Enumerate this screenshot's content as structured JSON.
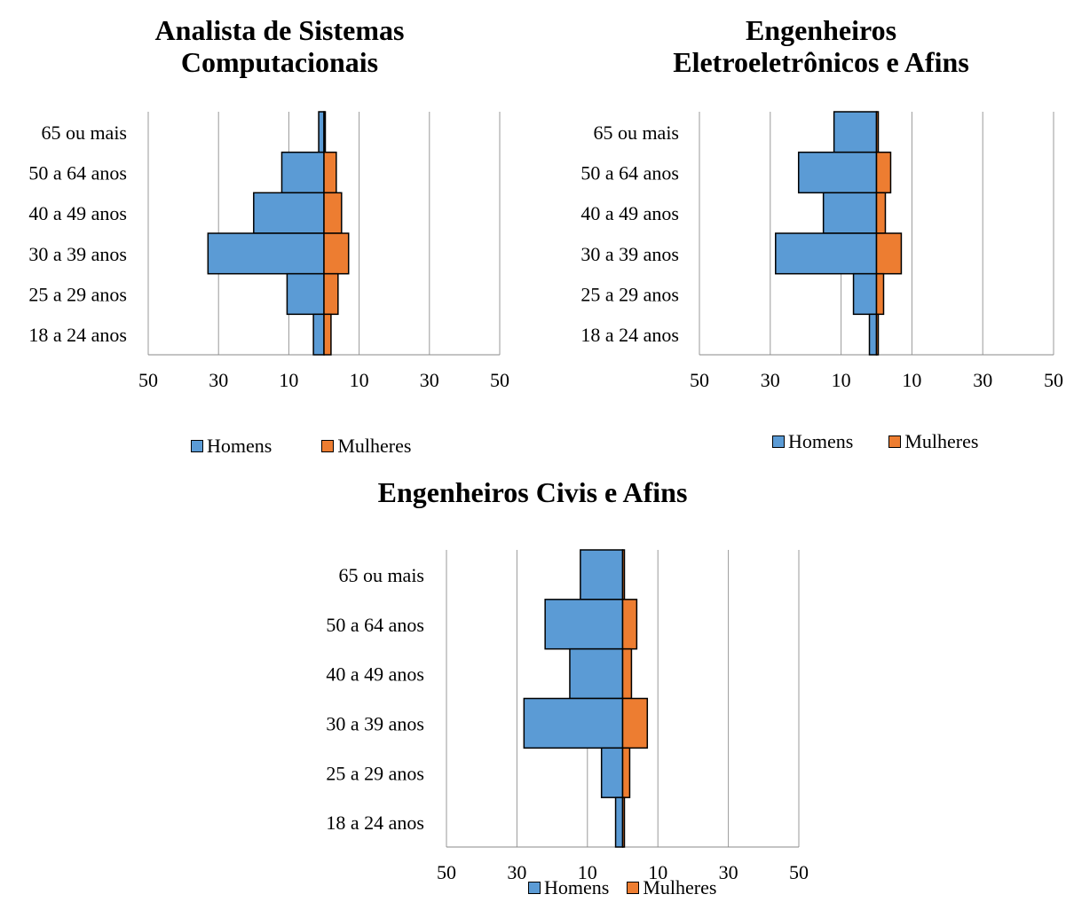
{
  "chart_data": [
    {
      "type": "bar",
      "orientation": "horizontal",
      "title": [
        "Analista de Sistemas",
        "Computacionais"
      ],
      "categories": [
        "65 ou mais",
        "50 a 64 anos",
        "40 a 49 anos",
        "30 a 39 anos",
        "25 a 29 anos",
        "18 a 24 anos"
      ],
      "x_tick_labels": [
        "50",
        "30",
        "10",
        "10",
        "30",
        "50"
      ],
      "xlim": [
        -50,
        50
      ],
      "grid": true,
      "legend_position": "bottom",
      "series": [
        {
          "name": "Homens",
          "color": "#5b9bd5",
          "values": [
            -1.5,
            -12,
            -20,
            -33,
            -10.5,
            -3
          ]
        },
        {
          "name": "Mulheres",
          "color": "#ed7d31",
          "values": [
            0,
            3.5,
            5,
            7,
            4,
            2
          ]
        }
      ]
    },
    {
      "type": "bar",
      "orientation": "horizontal",
      "title": [
        "Engenheiros",
        "Eletroeletrônicos e Afins"
      ],
      "categories": [
        "65 ou mais",
        "50 a 64 anos",
        "40 a 49 anos",
        "30 a 39 anos",
        "25 a 29 anos",
        "18 a 24 anos"
      ],
      "x_tick_labels": [
        "50",
        "30",
        "10",
        "10",
        "30",
        "50"
      ],
      "xlim": [
        -50,
        50
      ],
      "grid": true,
      "legend_position": "bottom",
      "series": [
        {
          "name": "Homens",
          "color": "#5b9bd5",
          "values": [
            -12,
            -22,
            -15,
            -28.5,
            -6.5,
            -2
          ]
        },
        {
          "name": "Mulheres",
          "color": "#ed7d31",
          "values": [
            0.5,
            4,
            2.5,
            7,
            2,
            0.5
          ]
        }
      ]
    },
    {
      "type": "bar",
      "orientation": "horizontal",
      "title": [
        "Engenheiros Civis e Afins"
      ],
      "categories": [
        "65 ou mais",
        "50 a 64 anos",
        "40 a 49 anos",
        "30 a 39 anos",
        "25 a 29 anos",
        "18 a 24 anos"
      ],
      "x_tick_labels": [
        "50",
        "30",
        "10",
        "10",
        "30",
        "50"
      ],
      "xlim": [
        -50,
        50
      ],
      "grid": true,
      "legend_position": "bottom",
      "series": [
        {
          "name": "Homens",
          "color": "#5b9bd5",
          "values": [
            -12,
            -22,
            -15,
            -28,
            -6,
            -2
          ]
        },
        {
          "name": "Mulheres",
          "color": "#ed7d31",
          "values": [
            0.5,
            4,
            2.5,
            7,
            2,
            0.5
          ]
        }
      ]
    }
  ]
}
